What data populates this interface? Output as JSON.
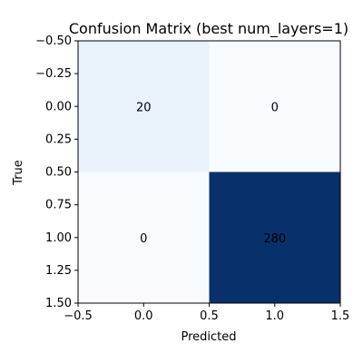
{
  "chart_data": {
    "type": "heatmap",
    "title": "Confusion Matrix (best num_layers=1)",
    "xlabel": "Predicted",
    "ylabel": "True",
    "matrix": [
      [
        20,
        0
      ],
      [
        0,
        280
      ]
    ],
    "xlim": [
      -0.5,
      1.5
    ],
    "ylim": [
      1.5,
      -0.5
    ],
    "x_ticks": [
      "−0.5",
      "0.0",
      "0.5",
      "1.0",
      "1.5"
    ],
    "y_ticks": [
      "−0.50",
      "−0.25",
      "0.00",
      "0.25",
      "0.50",
      "0.75",
      "1.00",
      "1.25",
      "1.50"
    ],
    "colormap": "Blues",
    "grid": false,
    "colors": {
      "low": "#f7fbff",
      "high": "#08306b"
    }
  }
}
